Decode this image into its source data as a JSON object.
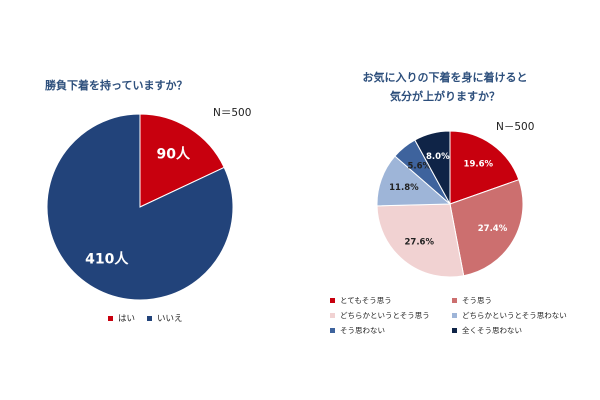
{
  "chart_data": [
    {
      "type": "pie",
      "title": "勝負下着を持っていますか？",
      "note": "N＝500",
      "slices": [
        {
          "label": "はい",
          "value": 90,
          "display": "90人",
          "color": "#c8000e",
          "text_color": "#ffffff"
        },
        {
          "label": "いいえ",
          "value": 410,
          "display": "410人",
          "color": "#22437a",
          "text_color": "#ffffff"
        }
      ],
      "legend": "bottom"
    },
    {
      "type": "pie",
      "title_lines": [
        "お気に入りの下着を身に着けると",
        "気分が上がりますか？"
      ],
      "note": "N－500",
      "slices": [
        {
          "label": "とてもそう思う",
          "value": 19.6,
          "display": "19.6%",
          "color": "#c8000e",
          "text_color": "#ffffff"
        },
        {
          "label": "そう思う",
          "value": 27.4,
          "display": "27.4%",
          "color": "#cc6f6f",
          "text_color": "#ffffff"
        },
        {
          "label": "どちらかというとそう思う",
          "value": 27.6,
          "display": "27.6%",
          "color": "#f1d2d2",
          "text_color": "#222222"
        },
        {
          "label": "どちらかというとそう思わない",
          "value": 11.8,
          "display": "11.8%",
          "color": "#9eb5d8",
          "text_color": "#222222"
        },
        {
          "label": "そう思わない",
          "value": 5.6,
          "display": "5.6%",
          "color": "#3e639d",
          "text_color": "#222222"
        },
        {
          "label": "全くそう思わない",
          "value": 8.0,
          "display": "8.0%",
          "color": "#0f2447",
          "text_color": "#ffffff"
        }
      ],
      "legend": "bottom"
    }
  ]
}
